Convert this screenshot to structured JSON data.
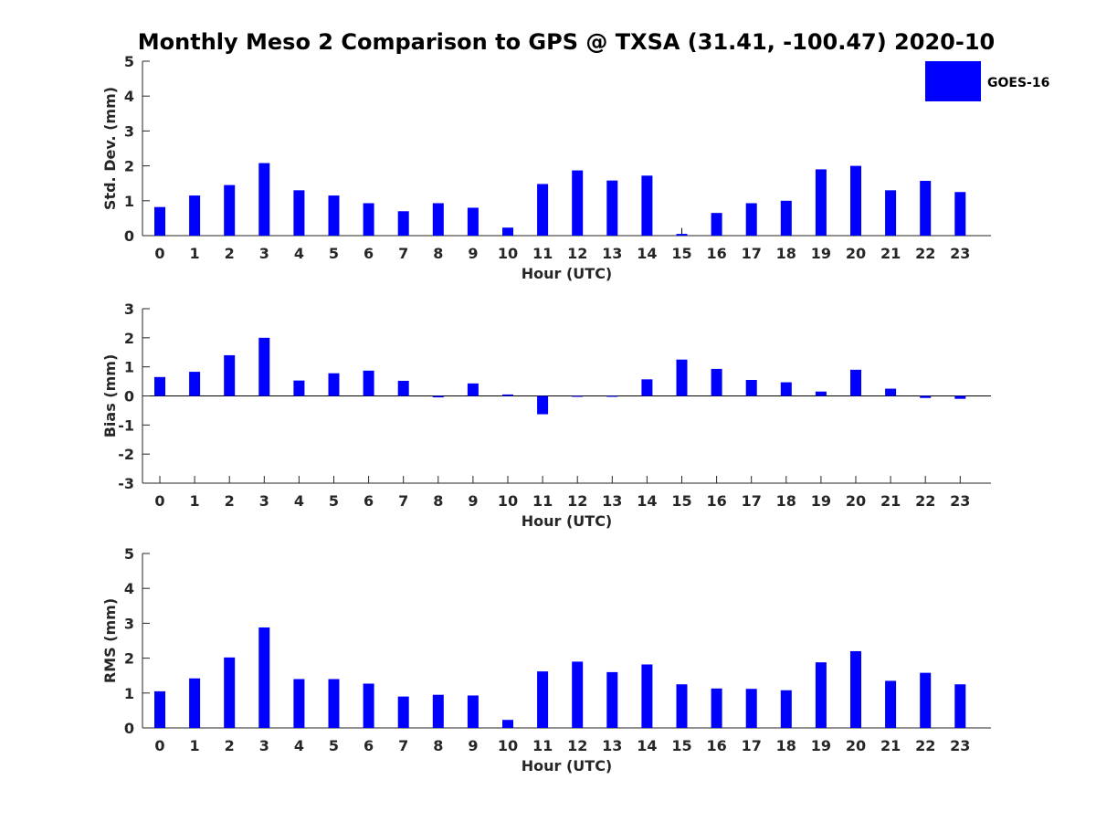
{
  "title": "Monthly Meso 2 Comparison to GPS @ TXSA (31.41, -100.47) 2020-10",
  "legend": {
    "label": "GOES-16",
    "color": "#0000ff"
  },
  "chart_data": [
    {
      "type": "bar",
      "name": "std-dev",
      "xlabel": "Hour (UTC)",
      "ylabel": "Std. Dev. (mm)",
      "ylim": [
        0,
        5
      ],
      "yticks": [
        0,
        1,
        2,
        3,
        4,
        5
      ],
      "categories": [
        "0",
        "1",
        "2",
        "3",
        "4",
        "5",
        "6",
        "7",
        "8",
        "9",
        "10",
        "11",
        "12",
        "13",
        "14",
        "15",
        "16",
        "17",
        "18",
        "19",
        "20",
        "21",
        "22",
        "23"
      ],
      "series": [
        {
          "name": "GOES-16",
          "values": [
            0.82,
            1.15,
            1.45,
            2.08,
            1.3,
            1.15,
            0.93,
            0.7,
            0.93,
            0.8,
            0.23,
            1.48,
            1.87,
            1.58,
            1.72,
            0.05,
            0.65,
            0.93,
            1.0,
            1.9,
            2.0,
            1.3,
            1.57,
            1.25
          ]
        }
      ],
      "error_bars": [
        {
          "category": "15",
          "value": 0.22
        }
      ]
    },
    {
      "type": "bar",
      "name": "bias",
      "xlabel": "Hour (UTC)",
      "ylabel": "Bias (mm)",
      "ylim": [
        -3,
        3
      ],
      "yticks": [
        -3,
        -2,
        -1,
        0,
        1,
        2,
        3
      ],
      "categories": [
        "0",
        "1",
        "2",
        "3",
        "4",
        "5",
        "6",
        "7",
        "8",
        "9",
        "10",
        "11",
        "12",
        "13",
        "14",
        "15",
        "16",
        "17",
        "18",
        "19",
        "20",
        "21",
        "22",
        "23"
      ],
      "series": [
        {
          "name": "GOES-16",
          "values": [
            0.65,
            0.83,
            1.4,
            2.0,
            0.53,
            0.78,
            0.87,
            0.52,
            -0.05,
            0.43,
            0.05,
            -0.63,
            -0.03,
            -0.03,
            0.57,
            1.25,
            0.93,
            0.55,
            0.47,
            0.15,
            0.9,
            0.25,
            -0.07,
            -0.1
          ]
        }
      ]
    },
    {
      "type": "bar",
      "name": "rms",
      "xlabel": "Hour (UTC)",
      "ylabel": "RMS (mm)",
      "ylim": [
        0,
        5
      ],
      "yticks": [
        0,
        1,
        2,
        3,
        4,
        5
      ],
      "categories": [
        "0",
        "1",
        "2",
        "3",
        "4",
        "5",
        "6",
        "7",
        "8",
        "9",
        "10",
        "11",
        "12",
        "13",
        "14",
        "15",
        "16",
        "17",
        "18",
        "19",
        "20",
        "21",
        "22",
        "23"
      ],
      "series": [
        {
          "name": "GOES-16",
          "values": [
            1.05,
            1.42,
            2.02,
            2.88,
            1.4,
            1.4,
            1.27,
            0.9,
            0.95,
            0.93,
            0.23,
            1.62,
            1.9,
            1.6,
            1.82,
            1.25,
            1.13,
            1.12,
            1.08,
            1.88,
            2.2,
            1.35,
            1.58,
            1.25
          ]
        }
      ]
    }
  ]
}
